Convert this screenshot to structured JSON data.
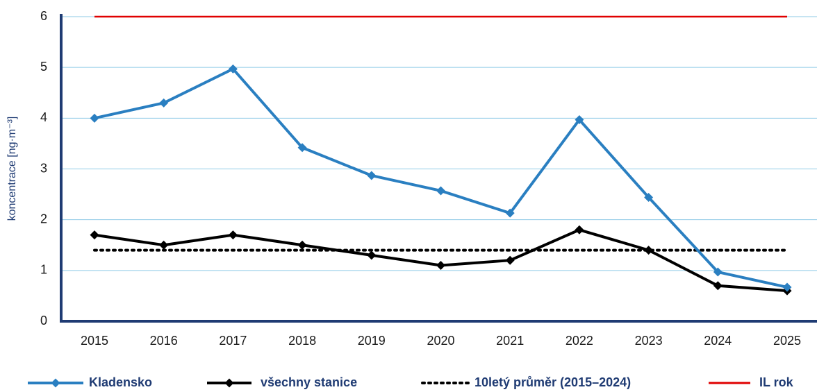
{
  "chart_data": {
    "type": "line",
    "y_label": "koncentrace [ng·m⁻³]",
    "categories": [
      "2015",
      "2016",
      "2017",
      "2018",
      "2019",
      "2020",
      "2021",
      "2022",
      "2023",
      "2024",
      "2025"
    ],
    "series": [
      {
        "name": "Kladensko",
        "color": "#2a7fc1",
        "style": "solid",
        "marker": "diamond",
        "values": [
          4.0,
          4.3,
          4.97,
          3.42,
          2.87,
          2.57,
          2.13,
          3.97,
          2.44,
          0.97,
          0.67
        ]
      },
      {
        "name": "všechny stanice",
        "color": "#000000",
        "style": "solid",
        "marker": "diamond",
        "values": [
          1.7,
          1.5,
          1.7,
          1.5,
          1.3,
          1.1,
          1.2,
          1.8,
          1.4,
          0.7,
          0.6
        ]
      },
      {
        "name": "10letý průměr (2015–2024)",
        "color": "#000000",
        "style": "dotted",
        "values": [
          1.4,
          1.4,
          1.4,
          1.4,
          1.4,
          1.4,
          1.4,
          1.4,
          1.4,
          1.4,
          1.4
        ]
      },
      {
        "name": "IL rok",
        "color": "#e00000",
        "style": "solid",
        "values": [
          6,
          6,
          6,
          6,
          6,
          6,
          6,
          6,
          6,
          6,
          6
        ]
      }
    ],
    "ylim": [
      0,
      6
    ],
    "yticks": [
      0,
      1,
      2,
      3,
      4,
      5,
      6
    ],
    "grid": true,
    "legend": "bottom"
  }
}
